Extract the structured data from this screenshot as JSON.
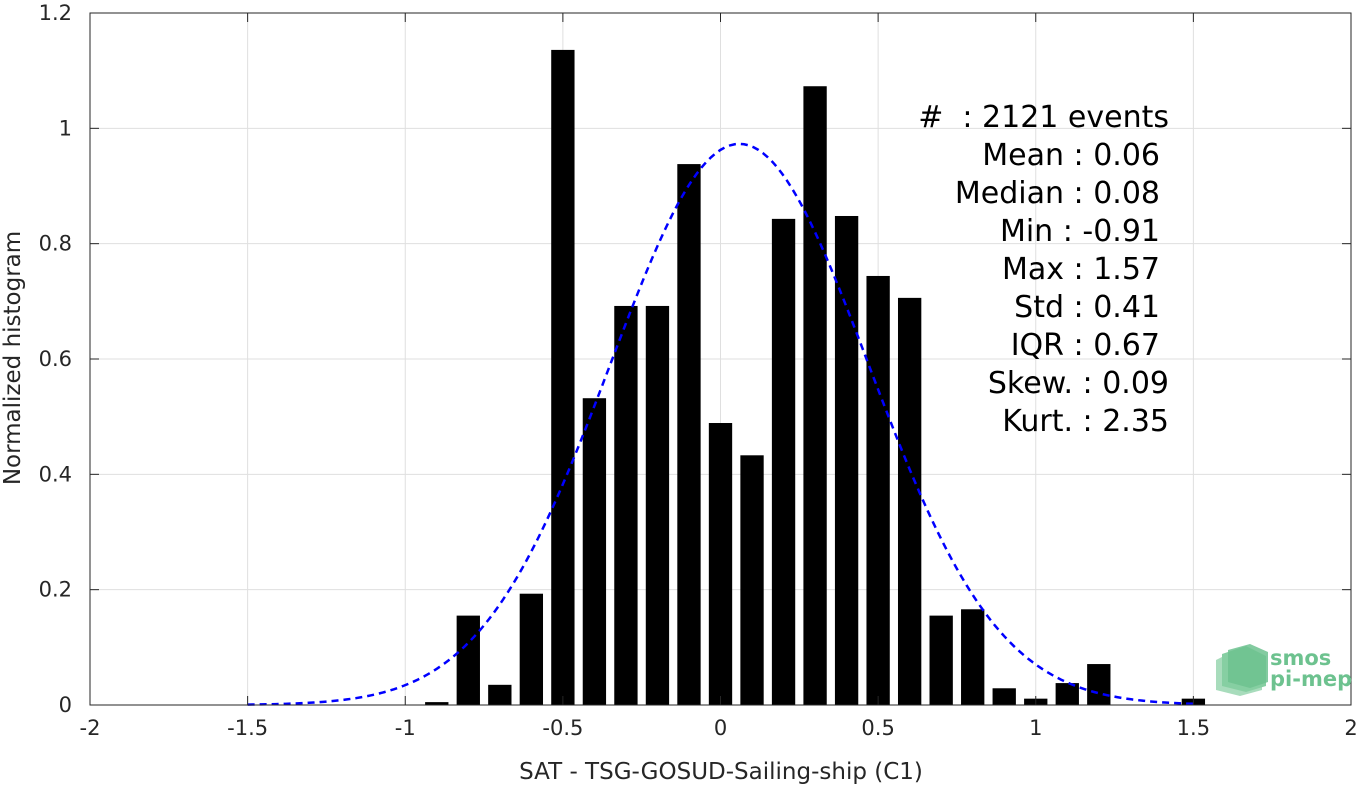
{
  "chart_data": {
    "type": "bar",
    "xlabel": "SAT - TSG-GOSUD-Sailing-ship (C1)",
    "ylabel": "Normalized histogram",
    "xlim": [
      -2,
      2
    ],
    "ylim": [
      0,
      1.2
    ],
    "x_ticks": [
      "-2",
      "-1.5",
      "-1",
      "-0.5",
      "0",
      "0.5",
      "1",
      "1.5",
      "2"
    ],
    "y_ticks": [
      "0",
      "0.2",
      "0.4",
      "0.6",
      "0.8",
      "1",
      "1.2"
    ],
    "grid": true,
    "bin_width": 0.1,
    "bars": [
      {
        "x": -0.9,
        "y": 0.005
      },
      {
        "x": -0.8,
        "y": 0.155
      },
      {
        "x": -0.7,
        "y": 0.035
      },
      {
        "x": -0.6,
        "y": 0.193
      },
      {
        "x": -0.5,
        "y": 1.136
      },
      {
        "x": -0.4,
        "y": 0.532
      },
      {
        "x": -0.3,
        "y": 0.692
      },
      {
        "x": -0.2,
        "y": 0.692
      },
      {
        "x": -0.1,
        "y": 0.938
      },
      {
        "x": 0.0,
        "y": 0.489
      },
      {
        "x": 0.1,
        "y": 0.433
      },
      {
        "x": 0.2,
        "y": 0.843
      },
      {
        "x": 0.3,
        "y": 1.073
      },
      {
        "x": 0.4,
        "y": 0.848
      },
      {
        "x": 0.5,
        "y": 0.744
      },
      {
        "x": 0.6,
        "y": 0.706
      },
      {
        "x": 0.7,
        "y": 0.155
      },
      {
        "x": 0.8,
        "y": 0.166
      },
      {
        "x": 0.9,
        "y": 0.029
      },
      {
        "x": 1.0,
        "y": 0.011
      },
      {
        "x": 1.1,
        "y": 0.038
      },
      {
        "x": 1.2,
        "y": 0.071
      },
      {
        "x": 1.5,
        "y": 0.011
      }
    ],
    "fit_curve": {
      "type": "gaussian",
      "mean": 0.06,
      "std": 0.41,
      "x_range": [
        -1.5,
        1.5
      ],
      "color": "#0000ff",
      "style": "dashed"
    },
    "bar_color": "#000000"
  },
  "stats_box": {
    "lines": [
      "#  : 2121 events",
      "Mean : 0.06",
      "Median : 0.08",
      "Min : -0.91",
      "Max : 1.57",
      "Std : 0.41",
      "IQR : 0.67",
      "Skew. : 0.09",
      "Kurt. : 2.35"
    ]
  },
  "logo": {
    "line1": "smos",
    "line2": "pi-mep"
  }
}
